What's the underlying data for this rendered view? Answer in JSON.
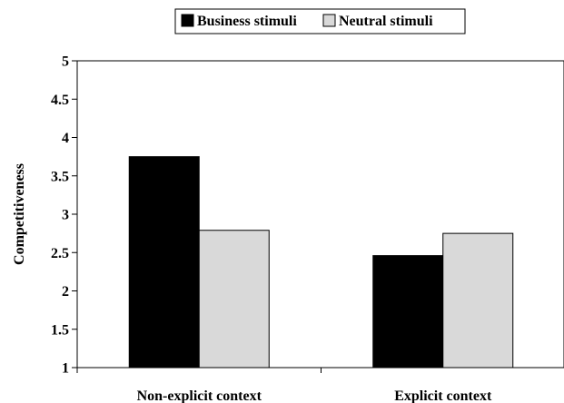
{
  "chart_data": {
    "type": "bar",
    "categories": [
      "Non-explicit context",
      "Explicit context"
    ],
    "series": [
      {
        "name": "Business stimuli",
        "values": [
          3.75,
          2.46
        ],
        "color": "#000000"
      },
      {
        "name": "Neutral stimuli",
        "values": [
          2.79,
          2.75
        ],
        "color": "#d9d9d9"
      }
    ],
    "title": "",
    "xlabel": "",
    "ylabel": "Competitiveness",
    "ylim": [
      1,
      5
    ],
    "yticks": [
      "1",
      "1.5",
      "2",
      "2.5",
      "3",
      "3.5",
      "4",
      "4.5",
      "5"
    ],
    "grid": false,
    "legend": "top-center"
  }
}
